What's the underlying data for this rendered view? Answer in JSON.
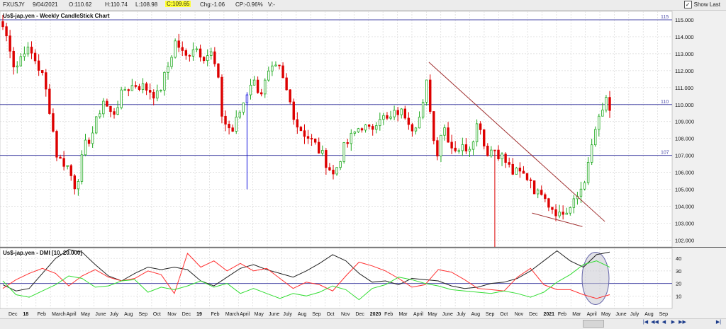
{
  "toolbar": {
    "symbol": "FXUSJY",
    "date": "9/04/2021",
    "open": "O:110.62",
    "high": "H:110.74",
    "low": "L:108.98",
    "close": "C:109.65",
    "change": "Chg:-1.06",
    "change_pct": "CP:-0.96%",
    "volume": "V:-",
    "show_last_label": "Show Last",
    "show_last_checked": true
  },
  "chart_data": [
    {
      "type": "candlestick",
      "title": "Us$-jap.yen - Weekly CandleStick Chart",
      "ylim": [
        101.6,
        115.5
      ],
      "yticks": [
        "102.000",
        "103.000",
        "104.000",
        "105.000",
        "106.000",
        "107.000",
        "108.000",
        "109.000",
        "110.000",
        "111.000",
        "112.000",
        "113.000",
        "114.000",
        "115.000"
      ],
      "hlines": [
        {
          "value": 115,
          "label": "115"
        },
        {
          "value": 110,
          "label": "110"
        },
        {
          "value": 107,
          "label": "107"
        }
      ],
      "trendlines": [
        {
          "from": [
            0.702,
            112.5
          ],
          "to": [
            0.992,
            103.1
          ],
          "color": "#a03030"
        },
        {
          "from": [
            0.872,
            103.6
          ],
          "to": [
            0.955,
            102.8
          ],
          "color": "#a03030"
        }
      ],
      "anchors": [
        [
          0,
          114.6
        ],
        [
          0.012,
          113.4
        ],
        [
          0.02,
          112.0
        ],
        [
          0.035,
          113.3
        ],
        [
          0.05,
          112.9
        ],
        [
          0.065,
          111.7
        ],
        [
          0.075,
          110.2
        ],
        [
          0.09,
          106.8
        ],
        [
          0.105,
          106.5
        ],
        [
          0.12,
          105.1
        ],
        [
          0.135,
          107.5
        ],
        [
          0.15,
          108.5
        ],
        [
          0.165,
          110.3
        ],
        [
          0.18,
          109.3
        ],
        [
          0.2,
          110.9
        ],
        [
          0.22,
          111.2
        ],
        [
          0.24,
          110.9
        ],
        [
          0.255,
          110.5
        ],
        [
          0.27,
          112.0
        ],
        [
          0.285,
          113.8
        ],
        [
          0.3,
          112.7
        ],
        [
          0.315,
          113.5
        ],
        [
          0.33,
          112.9
        ],
        [
          0.345,
          113.0
        ],
        [
          0.355,
          111.3
        ],
        [
          0.362,
          109.1
        ],
        [
          0.378,
          108.4
        ],
        [
          0.395,
          110.0
        ],
        [
          0.41,
          111.5
        ],
        [
          0.425,
          110.7
        ],
        [
          0.44,
          111.9
        ],
        [
          0.455,
          112.1
        ],
        [
          0.47,
          110.5
        ],
        [
          0.485,
          108.8
        ],
        [
          0.5,
          108.2
        ],
        [
          0.515,
          107.6
        ],
        [
          0.53,
          106.8
        ],
        [
          0.545,
          105.8
        ],
        [
          0.56,
          107.3
        ],
        [
          0.575,
          108.1
        ],
        [
          0.59,
          108.8
        ],
        [
          0.605,
          108.4
        ],
        [
          0.62,
          109.4
        ],
        [
          0.635,
          109.0
        ],
        [
          0.65,
          109.6
        ],
        [
          0.665,
          109.4
        ],
        [
          0.675,
          108.7
        ],
        [
          0.69,
          109.4
        ],
        [
          0.7,
          111.6
        ],
        [
          0.708,
          108.2
        ],
        [
          0.715,
          107.1
        ],
        [
          0.725,
          108.9
        ],
        [
          0.74,
          107.5
        ],
        [
          0.755,
          107.4
        ],
        [
          0.77,
          107.6
        ],
        [
          0.785,
          109.2
        ],
        [
          0.795,
          107.2
        ],
        [
          0.81,
          107.4
        ],
        [
          0.825,
          106.8
        ],
        [
          0.84,
          106.0
        ],
        [
          0.855,
          105.9
        ],
        [
          0.87,
          105.6
        ],
        [
          0.88,
          104.6
        ],
        [
          0.89,
          105.1
        ],
        [
          0.9,
          104.1
        ],
        [
          0.91,
          103.8
        ],
        [
          0.92,
          103.5
        ],
        [
          0.93,
          103.7
        ],
        [
          0.94,
          104.1
        ],
        [
          0.95,
          104.8
        ],
        [
          0.96,
          105.8
        ],
        [
          0.967,
          106.6
        ],
        [
          0.973,
          108.2
        ],
        [
          0.98,
          108.9
        ],
        [
          0.987,
          109.3
        ],
        [
          0.993,
          110.6
        ],
        [
          1.0,
          109.65
        ]
      ],
      "xticks": [
        "Dec",
        "18",
        "Feb",
        "March",
        "April",
        "May",
        "June",
        "July",
        "Aug",
        "Sep",
        "Oct",
        "Nov",
        "Dec",
        "19",
        "Feb",
        "March",
        "April",
        "May",
        "June",
        "July",
        "Aug",
        "Sep",
        "Oct",
        "Nov",
        "Dec",
        "2020",
        "Feb",
        "Mar",
        "April",
        "May",
        "June",
        "July",
        "Aug",
        "Sep",
        "Oct",
        "Nov",
        "Dec",
        "2021",
        "Feb",
        "Mar",
        "April",
        "May",
        "June",
        "July",
        "Aug",
        "Sep"
      ]
    },
    {
      "type": "line",
      "title": "Us$-jap.yen - DMI [10, 20.000]",
      "ylim": [
        0,
        48
      ],
      "yticks": [
        "10",
        "20",
        "30",
        "40"
      ],
      "hlines": [
        20
      ],
      "series": [
        {
          "color": "#222222",
          "values": [
            19,
            14,
            16,
            28,
            40,
            47,
            45,
            35,
            26,
            22,
            28,
            33,
            31,
            33,
            31,
            22,
            18,
            25,
            32,
            35,
            31,
            28,
            25,
            30,
            36,
            43,
            38,
            28,
            21,
            22,
            19,
            24,
            23,
            22,
            18,
            16,
            17,
            20,
            21,
            24,
            30,
            38,
            46,
            38,
            33,
            43,
            45
          ]
        },
        {
          "color": "#ff3030",
          "values": [
            16,
            23,
            28,
            32,
            28,
            18,
            26,
            31,
            25,
            22,
            24,
            30,
            27,
            12,
            44,
            33,
            38,
            30,
            36,
            30,
            32,
            24,
            16,
            21,
            19,
            14,
            26,
            37,
            34,
            30,
            24,
            17,
            19,
            31,
            29,
            23,
            16,
            15,
            14,
            25,
            32,
            19,
            15,
            15,
            11,
            8,
            11
          ]
        },
        {
          "color": "#33dd33",
          "values": [
            22,
            11,
            9,
            14,
            19,
            26,
            24,
            17,
            18,
            22,
            23,
            13,
            17,
            15,
            18,
            22,
            17,
            20,
            12,
            16,
            12,
            8,
            12,
            10,
            13,
            18,
            15,
            7,
            16,
            19,
            25,
            23,
            20,
            18,
            15,
            14,
            13,
            12,
            14,
            12,
            9,
            13,
            21,
            27,
            35,
            38,
            33
          ]
        }
      ],
      "highlight": "ellipse"
    }
  ]
}
